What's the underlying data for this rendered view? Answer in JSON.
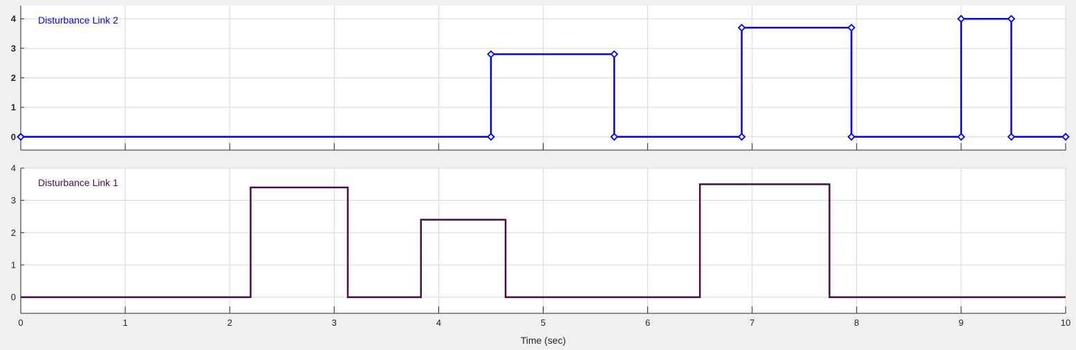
{
  "chart_data": [
    {
      "type": "line",
      "step": true,
      "legend": "Disturbance Link 2",
      "legend_position": "top-left",
      "color": "#0000ff",
      "markers": "diamond",
      "grid": true,
      "xlim": [
        0,
        10
      ],
      "ylim": [
        -0.45,
        4.45
      ],
      "yticks": [
        0,
        1,
        2,
        3,
        4
      ],
      "xticks": [
        0,
        1,
        2,
        3,
        4,
        5,
        6,
        7,
        8,
        9,
        10
      ],
      "show_xtick_labels": false,
      "points": [
        [
          0,
          0
        ],
        [
          4.5,
          0
        ],
        [
          4.5,
          2.8
        ],
        [
          5.68,
          2.8
        ],
        [
          5.68,
          0
        ],
        [
          6.9,
          0
        ],
        [
          6.9,
          3.7
        ],
        [
          7.95,
          3.7
        ],
        [
          7.95,
          0
        ],
        [
          9.0,
          0
        ],
        [
          9.0,
          4.0
        ],
        [
          9.48,
          4.0
        ],
        [
          9.48,
          0
        ],
        [
          10,
          0
        ]
      ]
    },
    {
      "type": "line",
      "step": true,
      "legend": "Disturbance Link 1",
      "legend_position": "top-left",
      "color": "#4b0b48",
      "markers": "none",
      "grid": true,
      "xlim": [
        0,
        10
      ],
      "ylim": [
        -0.5,
        4.0
      ],
      "yticks": [
        0,
        1,
        2,
        3,
        4
      ],
      "xticks": [
        0,
        1,
        2,
        3,
        4,
        5,
        6,
        7,
        8,
        9,
        10
      ],
      "show_xtick_labels": true,
      "xlabel": "Time (sec)",
      "points": [
        [
          0,
          0
        ],
        [
          2.2,
          0
        ],
        [
          2.2,
          3.4
        ],
        [
          3.13,
          3.4
        ],
        [
          3.13,
          0
        ],
        [
          3.83,
          0
        ],
        [
          3.83,
          2.4
        ],
        [
          4.64,
          2.4
        ],
        [
          4.64,
          0
        ],
        [
          6.5,
          0
        ],
        [
          6.5,
          3.5
        ],
        [
          7.74,
          3.5
        ],
        [
          7.74,
          0
        ],
        [
          10,
          0
        ]
      ]
    }
  ]
}
